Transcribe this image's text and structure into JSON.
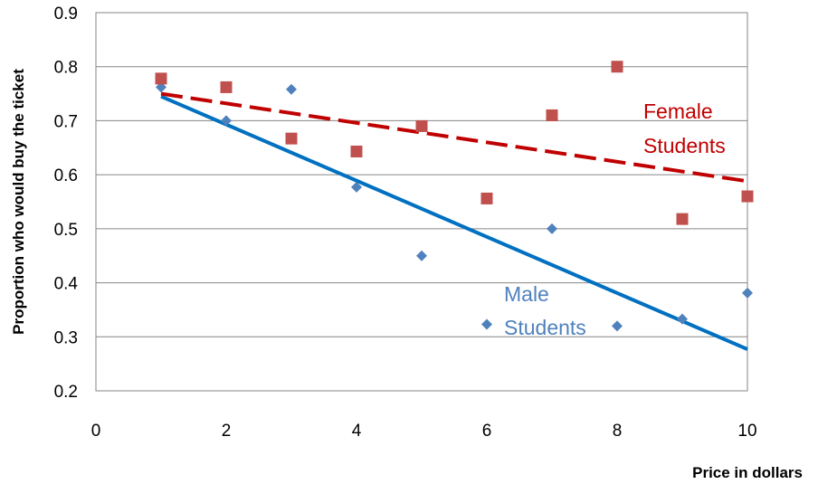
{
  "chart_data": {
    "type": "scatter",
    "xlabel": "Price in dollars",
    "ylabel": "Proportion who would buy the ticket",
    "xlim": [
      0,
      10
    ],
    "ylim": [
      0.2,
      0.9
    ],
    "x_ticks": [
      0,
      2,
      4,
      6,
      8,
      10
    ],
    "y_ticks": [
      0.2,
      0.3,
      0.4,
      0.5,
      0.6,
      0.7,
      0.8,
      0.9
    ],
    "x_tick_labels": [
      "0",
      "2",
      "4",
      "6",
      "8",
      "10"
    ],
    "y_tick_labels": [
      "0.2",
      "0.3",
      "0.4",
      "0.5",
      "0.6",
      "0.7",
      "0.8",
      "0.9"
    ],
    "grid": "horizontal",
    "series": [
      {
        "name": "Male Students",
        "label_lines": [
          "Male",
          "Students"
        ],
        "color": "#4F81BD",
        "marker": "diamond",
        "x": [
          1,
          2,
          3,
          4,
          5,
          6,
          7,
          8,
          9,
          10
        ],
        "y": [
          0.762,
          0.7,
          0.758,
          0.577,
          0.45,
          0.323,
          0.5,
          0.32,
          0.333,
          0.381
        ],
        "trendline": {
          "style": "solid",
          "color": "#0070C0",
          "x": [
            1,
            10
          ],
          "y": [
            0.745,
            0.277
          ]
        }
      },
      {
        "name": "Female Students",
        "label_lines": [
          "Female",
          "Students"
        ],
        "color": "#C0504D",
        "marker": "square",
        "x": [
          1,
          2,
          3,
          4,
          5,
          6,
          7,
          8,
          9,
          10
        ],
        "y": [
          0.778,
          0.762,
          0.667,
          0.643,
          0.69,
          0.556,
          0.71,
          0.8,
          0.518,
          0.56
        ],
        "trendline": {
          "style": "dashed",
          "color": "#C00000",
          "x": [
            1,
            10
          ],
          "y": [
            0.75,
            0.588
          ]
        }
      }
    ]
  }
}
